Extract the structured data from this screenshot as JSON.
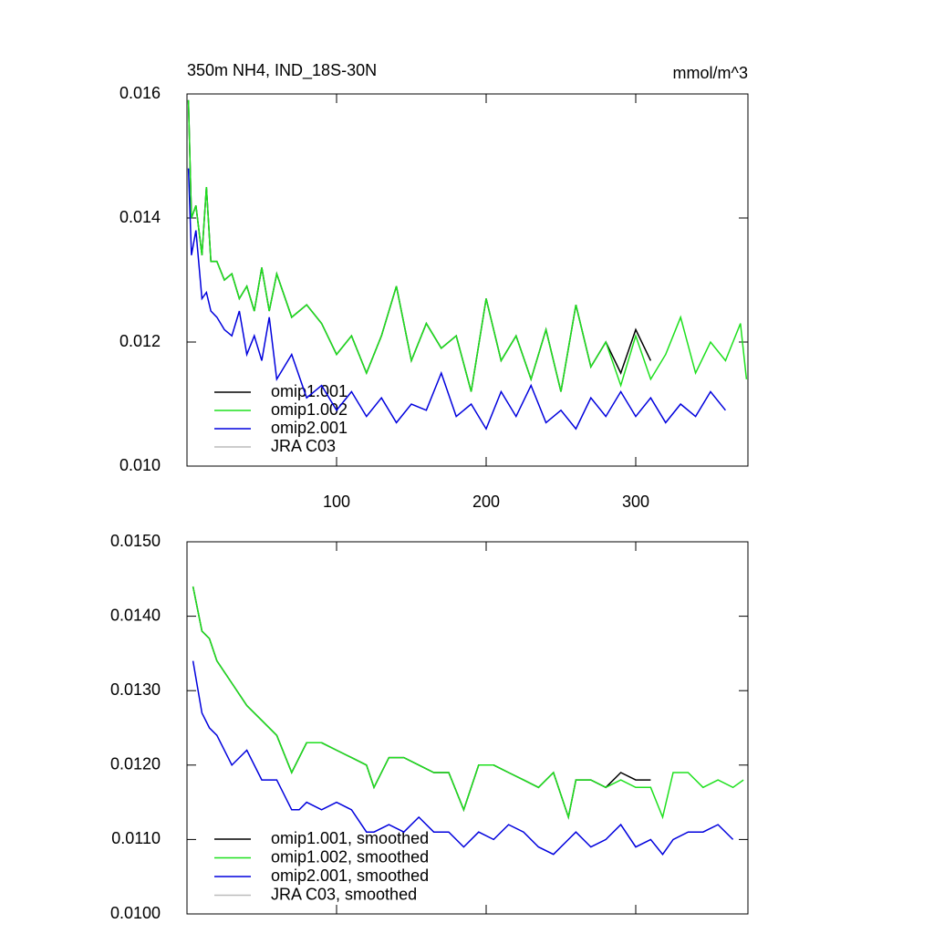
{
  "chart_data": [
    {
      "type": "line",
      "title": "350m NH4, IND_18S-30N",
      "units": "mmol/m^3",
      "x": [
        1,
        3,
        6,
        10,
        13,
        16,
        20,
        25,
        30,
        35,
        40,
        45,
        50,
        55,
        60,
        70,
        80,
        90,
        100,
        110,
        120,
        130,
        140,
        150,
        160,
        170,
        180,
        190,
        200,
        210,
        220,
        230,
        240,
        250,
        260,
        270,
        280,
        290,
        300,
        310,
        320,
        330,
        340,
        350,
        360,
        370,
        374
      ],
      "series": [
        {
          "name": "omip1.001",
          "color": "#000000",
          "values": [
            0.0159,
            0.014,
            0.0142,
            0.0134,
            0.0145,
            0.0133,
            0.0133,
            0.013,
            0.0131,
            0.0127,
            0.0129,
            0.0125,
            0.0132,
            0.0125,
            0.0131,
            0.0124,
            0.0126,
            0.0123,
            0.0118,
            0.0121,
            0.0115,
            0.0121,
            0.0129,
            0.0117,
            0.0123,
            0.0119,
            0.0121,
            0.0112,
            0.0127,
            0.0117,
            0.0121,
            0.0114,
            0.0122,
            0.0112,
            0.0126,
            0.0116,
            0.012,
            0.0115,
            0.0122,
            0.0117,
            null,
            null,
            null,
            null,
            null,
            null,
            null
          ]
        },
        {
          "name": "omip1.002",
          "color": "#1ee01e",
          "values": [
            0.0159,
            0.014,
            0.0142,
            0.0134,
            0.0145,
            0.0133,
            0.0133,
            0.013,
            0.0131,
            0.0127,
            0.0129,
            0.0125,
            0.0132,
            0.0125,
            0.0131,
            0.0124,
            0.0126,
            0.0123,
            0.0118,
            0.0121,
            0.0115,
            0.0121,
            0.0129,
            0.0117,
            0.0123,
            0.0119,
            0.0121,
            0.0112,
            0.0127,
            0.0117,
            0.0121,
            0.0114,
            0.0122,
            0.0112,
            0.0126,
            0.0116,
            0.012,
            0.0113,
            0.0121,
            0.0114,
            0.0118,
            0.0124,
            0.0115,
            0.012,
            0.0117,
            0.0123,
            0.0114
          ]
        },
        {
          "name": "omip2.001",
          "color": "#0000dd",
          "values": [
            0.0148,
            0.0134,
            0.0138,
            0.0127,
            0.0128,
            0.0125,
            0.0124,
            0.0122,
            0.0121,
            0.0125,
            0.0118,
            0.0121,
            0.0117,
            0.0124,
            0.0114,
            0.0118,
            0.0111,
            0.0113,
            0.0109,
            0.0112,
            0.0108,
            0.0111,
            0.0107,
            0.011,
            0.0109,
            0.0115,
            0.0108,
            0.011,
            0.0106,
            0.0112,
            0.0108,
            0.0113,
            0.0107,
            0.0109,
            0.0106,
            0.0111,
            0.0108,
            0.0112,
            0.0108,
            0.0111,
            0.0107,
            0.011,
            0.0108,
            0.0112,
            0.0109,
            null,
            null
          ]
        },
        {
          "name": "JRA C03",
          "color": "#bbbbbb",
          "values": [
            null,
            null,
            null,
            null,
            null,
            null,
            null,
            null,
            null,
            null,
            null,
            null,
            null,
            null,
            null,
            null,
            null,
            null,
            null,
            null,
            null,
            null,
            null,
            null,
            null,
            null,
            null,
            null,
            null,
            null,
            null,
            null,
            null,
            null,
            null,
            null,
            null,
            null,
            null,
            null,
            null,
            null,
            null,
            null,
            null,
            null,
            null
          ]
        }
      ],
      "xlim": [
        0,
        375
      ],
      "xticks": [
        100,
        200,
        300
      ],
      "ylim": [
        0.01,
        0.016
      ],
      "yticks": [
        {
          "value": 0.01,
          "label": "0.010"
        },
        0.012,
        0.014,
        0.016
      ],
      "grid": false,
      "legend": "lower left"
    },
    {
      "type": "line",
      "x": [
        4,
        10,
        15,
        20,
        30,
        40,
        50,
        60,
        70,
        75,
        80,
        90,
        100,
        110,
        120,
        125,
        135,
        145,
        155,
        165,
        175,
        185,
        195,
        205,
        215,
        225,
        235,
        245,
        255,
        260,
        270,
        280,
        290,
        300,
        310,
        318,
        325,
        335,
        345,
        355,
        365,
        372
      ],
      "series": [
        {
          "name": "omip1.001, smoothed",
          "color": "#000000",
          "values": [
            0.0144,
            0.0138,
            0.0137,
            0.0134,
            0.0131,
            0.0128,
            0.0126,
            0.0124,
            0.0119,
            0.0121,
            0.0123,
            0.0123,
            0.0122,
            0.0121,
            0.012,
            0.0117,
            0.0121,
            0.0121,
            0.012,
            0.0119,
            0.0119,
            0.0114,
            0.012,
            0.012,
            0.0119,
            0.0118,
            0.0117,
            0.0119,
            0.0113,
            0.0118,
            0.0118,
            0.0117,
            0.0119,
            0.0118,
            0.0118,
            null,
            null,
            null,
            null,
            null,
            null,
            null
          ]
        },
        {
          "name": "omip1.002, smoothed",
          "color": "#1ee01e",
          "values": [
            0.0144,
            0.0138,
            0.0137,
            0.0134,
            0.0131,
            0.0128,
            0.0126,
            0.0124,
            0.0119,
            0.0121,
            0.0123,
            0.0123,
            0.0122,
            0.0121,
            0.012,
            0.0117,
            0.0121,
            0.0121,
            0.012,
            0.0119,
            0.0119,
            0.0114,
            0.012,
            0.012,
            0.0119,
            0.0118,
            0.0117,
            0.0119,
            0.0113,
            0.0118,
            0.0118,
            0.0117,
            0.0118,
            0.0117,
            0.0117,
            0.0113,
            0.0119,
            0.0119,
            0.0117,
            0.0118,
            0.0117,
            0.0118
          ]
        },
        {
          "name": "omip2.001, smoothed",
          "color": "#0000dd",
          "values": [
            0.0134,
            0.0127,
            0.0125,
            0.0124,
            0.012,
            0.0122,
            0.0118,
            0.0118,
            0.0114,
            0.0114,
            0.0115,
            0.0114,
            0.0115,
            0.0114,
            0.0111,
            0.0111,
            0.0112,
            0.0111,
            0.0113,
            0.0111,
            0.0111,
            0.0109,
            0.0111,
            0.011,
            0.0112,
            0.0111,
            0.0109,
            0.0108,
            0.011,
            0.0111,
            0.0109,
            0.011,
            0.0112,
            0.0109,
            0.011,
            0.0108,
            0.011,
            0.0111,
            0.0111,
            0.0112,
            0.011,
            null
          ]
        },
        {
          "name": "JRA C03, smoothed",
          "color": "#bbbbbb",
          "values": [
            null,
            null,
            null,
            null,
            null,
            null,
            null,
            null,
            null,
            null,
            null,
            null,
            null,
            null,
            null,
            null,
            null,
            null,
            null,
            null,
            null,
            null,
            null,
            null,
            null,
            null,
            null,
            null,
            null,
            null,
            null,
            null,
            null,
            null,
            null,
            null,
            null,
            null,
            null,
            null,
            null,
            null
          ]
        }
      ],
      "xlim": [
        0,
        375
      ],
      "xticks": [
        100,
        200,
        300
      ],
      "ylim": [
        0.01,
        0.015
      ],
      "yticks": [
        {
          "value": 0.01,
          "label": "0.0100"
        },
        {
          "value": 0.011,
          "label": "0.0110"
        },
        {
          "value": 0.012,
          "label": "0.0120"
        },
        {
          "value": 0.013,
          "label": "0.0130"
        },
        {
          "value": 0.014,
          "label": "0.0140"
        },
        {
          "value": 0.015,
          "label": "0.0150"
        }
      ],
      "grid": false,
      "legend": "lower left"
    }
  ]
}
